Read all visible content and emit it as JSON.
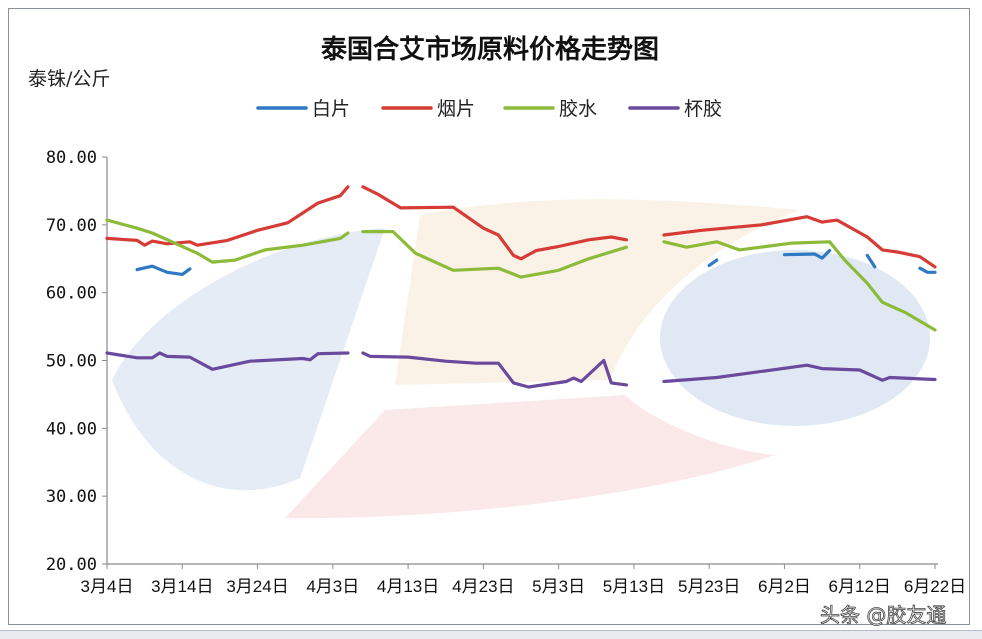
{
  "chart_data": {
    "type": "line",
    "title": "泰国合艾市场原料价格走势图",
    "ylabel": "泰铢/公斤",
    "xlabel": "",
    "ylim": [
      20,
      80
    ],
    "yticks": [
      "20.00",
      "30.00",
      "40.00",
      "50.00",
      "60.00",
      "70.00",
      "80.00"
    ],
    "xticks": [
      "3月4日",
      "3月14日",
      "3月24日",
      "4月3日",
      "4月13日",
      "4月23日",
      "5月3日",
      "5月13日",
      "5月23日",
      "6月2日",
      "6月12日",
      "6月22日"
    ],
    "xrange": [
      "3/4",
      "6/22"
    ],
    "grid": false,
    "legend_position": "top",
    "series": [
      {
        "name": "白片",
        "color": "#2f78c4",
        "segments": [
          [
            [
              "3/8",
              63.4
            ],
            [
              "3/10",
              63.9
            ],
            [
              "3/12",
              63.0
            ],
            [
              "3/14",
              62.7
            ],
            [
              "3/15",
              63.5
            ]
          ],
          [
            [
              "5/23",
              64.0
            ],
            [
              "5/24",
              64.8
            ]
          ],
          [
            [
              "6/2",
              65.6
            ],
            [
              "6/6",
              65.7
            ],
            [
              "6/7",
              65.1
            ],
            [
              "6/8",
              66.2
            ]
          ],
          [
            [
              "6/13",
              65.5
            ],
            [
              "6/14",
              63.8
            ]
          ],
          [
            [
              "6/20",
              63.6
            ],
            [
              "6/21",
              63.0
            ],
            [
              "6/22",
              63.0
            ]
          ]
        ]
      },
      {
        "name": "烟片",
        "color": "#d63b36",
        "segments": [
          [
            [
              "3/4",
              68.0
            ],
            [
              "3/8",
              67.7
            ],
            [
              "3/9",
              67.0
            ],
            [
              "3/10",
              67.6
            ],
            [
              "3/12",
              67.2
            ],
            [
              "3/15",
              67.5
            ],
            [
              "3/16",
              67.0
            ],
            [
              "3/20",
              67.7
            ],
            [
              "3/24",
              69.2
            ],
            [
              "3/28",
              70.3
            ],
            [
              "4/1",
              73.2
            ],
            [
              "4/4",
              74.3
            ],
            [
              "4/5",
              75.6
            ]
          ],
          [
            [
              "4/7",
              75.6
            ],
            [
              "4/9",
              74.5
            ],
            [
              "4/12",
              72.5
            ],
            [
              "4/19",
              72.6
            ],
            [
              "4/23",
              69.5
            ],
            [
              "4/25",
              68.5
            ],
            [
              "4/27",
              65.5
            ],
            [
              "4/28",
              65.0
            ],
            [
              "4/30",
              66.2
            ],
            [
              "5/3",
              66.8
            ],
            [
              "5/7",
              67.8
            ],
            [
              "5/10",
              68.2
            ],
            [
              "5/12",
              67.8
            ]
          ],
          [
            [
              "5/17",
              68.5
            ],
            [
              "5/22",
              69.2
            ],
            [
              "5/30",
              70.0
            ],
            [
              "6/5",
              71.2
            ],
            [
              "6/7",
              70.4
            ],
            [
              "6/9",
              70.7
            ],
            [
              "6/13",
              68.2
            ],
            [
              "6/15",
              66.3
            ],
            [
              "6/17",
              66.0
            ],
            [
              "6/20",
              65.3
            ],
            [
              "6/22",
              63.8
            ]
          ]
        ]
      },
      {
        "name": "胶水",
        "color": "#8cbb3a",
        "segments": [
          [
            [
              "3/4",
              70.7
            ],
            [
              "3/8",
              69.5
            ],
            [
              "3/10",
              68.8
            ],
            [
              "3/13",
              67.3
            ],
            [
              "3/16",
              65.8
            ],
            [
              "3/18",
              64.5
            ],
            [
              "3/21",
              64.8
            ],
            [
              "3/25",
              66.3
            ],
            [
              "3/30",
              67.0
            ],
            [
              "4/4",
              68.0
            ],
            [
              "4/5",
              68.8
            ]
          ],
          [
            [
              "4/7",
              69.0
            ],
            [
              "4/11",
              69.0
            ],
            [
              "4/14",
              65.8
            ],
            [
              "4/19",
              63.3
            ],
            [
              "4/25",
              63.6
            ],
            [
              "4/28",
              62.3
            ],
            [
              "5/3",
              63.3
            ],
            [
              "5/7",
              65.0
            ],
            [
              "5/12",
              66.7
            ]
          ],
          [
            [
              "5/17",
              67.5
            ],
            [
              "5/20",
              66.7
            ],
            [
              "5/24",
              67.5
            ],
            [
              "5/27",
              66.3
            ],
            [
              "6/3",
              67.3
            ],
            [
              "6/8",
              67.5
            ],
            [
              "6/10",
              64.8
            ],
            [
              "6/13",
              61.4
            ],
            [
              "6/15",
              58.6
            ],
            [
              "6/18",
              57.1
            ],
            [
              "6/22",
              54.5
            ]
          ]
        ]
      },
      {
        "name": "杯胶",
        "color": "#6a4a9c",
        "segments": [
          [
            [
              "3/4",
              51.1
            ],
            [
              "3/8",
              50.4
            ],
            [
              "3/10",
              50.4
            ],
            [
              "3/11",
              51.1
            ],
            [
              "3/12",
              50.6
            ],
            [
              "3/15",
              50.5
            ],
            [
              "3/18",
              48.7
            ],
            [
              "3/23",
              49.9
            ],
            [
              "3/30",
              50.3
            ],
            [
              "3/31",
              50.1
            ],
            [
              "4/1",
              51.0
            ],
            [
              "4/5",
              51.1
            ]
          ],
          [
            [
              "4/7",
              51.1
            ],
            [
              "4/8",
              50.6
            ],
            [
              "4/13",
              50.5
            ],
            [
              "4/18",
              49.9
            ],
            [
              "4/22",
              49.6
            ],
            [
              "4/25",
              49.6
            ],
            [
              "4/27",
              46.7
            ],
            [
              "4/29",
              46.1
            ],
            [
              "5/4",
              46.9
            ],
            [
              "5/5",
              47.4
            ],
            [
              "5/6",
              46.9
            ],
            [
              "5/9",
              50.0
            ],
            [
              "5/10",
              46.7
            ],
            [
              "5/12",
              46.4
            ]
          ],
          [
            [
              "5/17",
              46.9
            ],
            [
              "5/24",
              47.5
            ],
            [
              "6/5",
              49.3
            ],
            [
              "6/7",
              48.8
            ],
            [
              "6/12",
              48.6
            ],
            [
              "6/15",
              47.1
            ],
            [
              "6/16",
              47.5
            ],
            [
              "6/22",
              47.2
            ]
          ]
        ]
      }
    ]
  },
  "watermark": "头条 @胶友通"
}
